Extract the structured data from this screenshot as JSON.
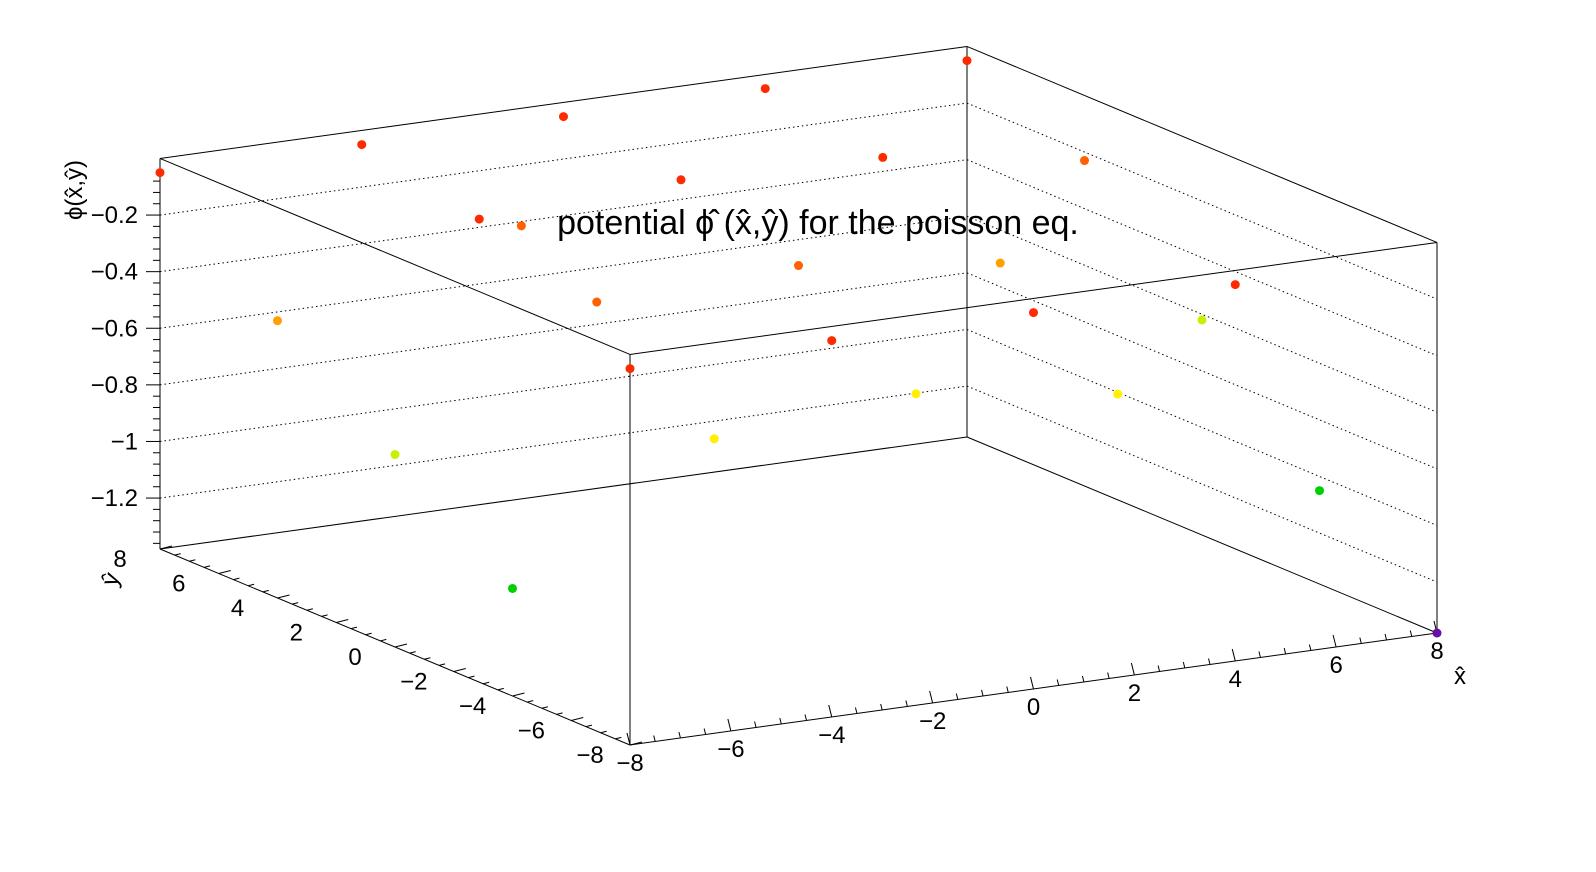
{
  "chart_data": {
    "type": "scatter",
    "title": "potential ϕ̂ (x̂,ŷ) for the poisson eq.",
    "xlabel": "x̂",
    "ylabel": "ŷ",
    "zlabel": "ϕ(x̂,ŷ)",
    "xlim": [
      -8,
      8
    ],
    "ylim": [
      -8,
      8
    ],
    "zlim": [
      -1.38,
      0.0
    ],
    "x_ticks": [
      "−8",
      "−6",
      "−4",
      "−2",
      "0",
      "2",
      "4",
      "6",
      "8"
    ],
    "y_ticks": [
      "−8",
      "−6",
      "−4",
      "−2",
      "0",
      "2",
      "4",
      "6",
      "8"
    ],
    "z_ticks": [
      "−0.2",
      "−0.4",
      "−0.6",
      "−0.8",
      "−1",
      "−1.2"
    ],
    "grid": true,
    "colors": {
      "frame": "#000000",
      "grid": "#000000",
      "palette": [
        "#6a0dad",
        "#1f2bff",
        "#00d000",
        "#7cff00",
        "#c8f000",
        "#ffef00",
        "#ffa000",
        "#ff6000",
        "#ff2a00"
      ]
    },
    "points": [
      {
        "x": -8,
        "y": 8,
        "z": -0.05
      },
      {
        "x": -4,
        "y": 8,
        "z": -0.05
      },
      {
        "x": 0,
        "y": 8,
        "z": -0.05
      },
      {
        "x": 4,
        "y": 8,
        "z": -0.05
      },
      {
        "x": 8,
        "y": 8,
        "z": -0.05
      },
      {
        "x": -8,
        "y": 4,
        "z": -0.4
      },
      {
        "x": -4,
        "y": 4,
        "z": -0.14
      },
      {
        "x": 0,
        "y": 4,
        "z": -0.1
      },
      {
        "x": 4,
        "y": 4,
        "z": -0.12
      },
      {
        "x": 8,
        "y": 4,
        "z": -0.23
      },
      {
        "x": -8,
        "y": 0,
        "z": -0.7
      },
      {
        "x": -4,
        "y": 0,
        "z": -0.26
      },
      {
        "x": 0,
        "y": 0,
        "z": -0.23
      },
      {
        "x": 4,
        "y": 0,
        "z": -0.32
      },
      {
        "x": 8,
        "y": 0,
        "z": -0.62
      },
      {
        "x": -8,
        "y": -4,
        "z": -1.0
      },
      {
        "x": -4,
        "y": -4,
        "z": -0.57
      },
      {
        "x": 0,
        "y": -4,
        "z": -0.51
      },
      {
        "x": 4,
        "y": -4,
        "z": -0.61
      },
      {
        "x": 8,
        "y": -4,
        "z": -1.05
      },
      {
        "x": -8,
        "y": -8,
        "z": -0.05
      },
      {
        "x": -4,
        "y": -8,
        "z": -0.05
      },
      {
        "x": 0,
        "y": -8,
        "z": -0.05
      },
      {
        "x": 4,
        "y": -8,
        "z": -0.05
      },
      {
        "x": 8,
        "y": -8,
        "z": -1.38
      },
      {
        "x": -2,
        "y": 6,
        "z": -0.3
      }
    ]
  }
}
